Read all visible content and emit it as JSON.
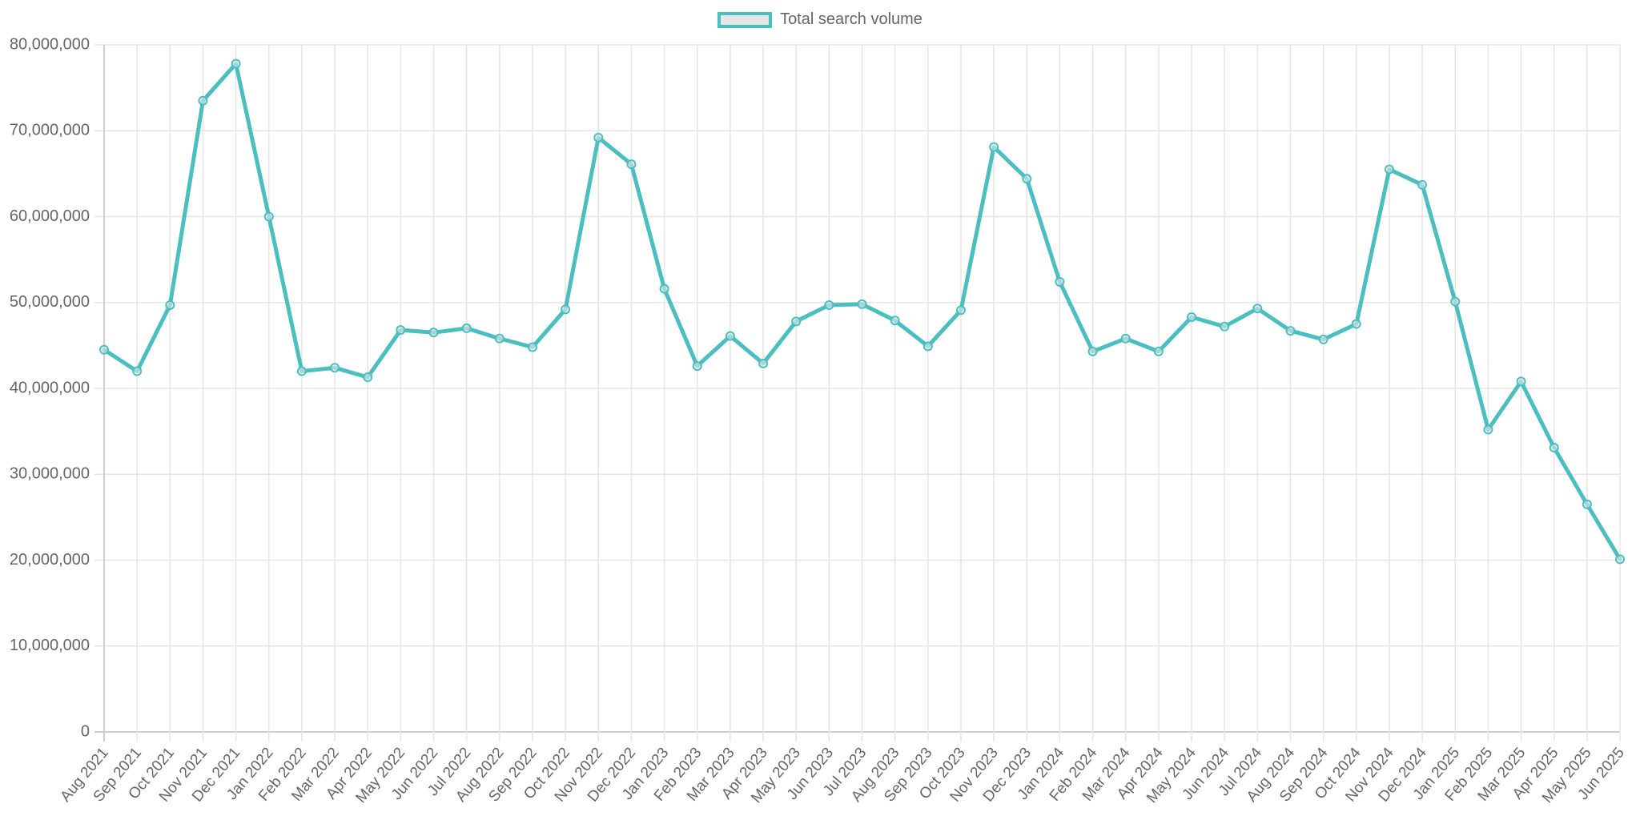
{
  "legend": {
    "label": "Total search volume",
    "border_color": "#4bbfbf",
    "fill_color": "#e6e6e6"
  },
  "chart_data": {
    "type": "line",
    "title": "",
    "xlabel": "",
    "ylabel": "",
    "ylim": [
      0,
      80000000
    ],
    "yticks": [
      0,
      10000000,
      20000000,
      30000000,
      40000000,
      50000000,
      60000000,
      70000000,
      80000000
    ],
    "ytick_labels": [
      "0",
      "10,000,000",
      "20,000,000",
      "30,000,000",
      "40,000,000",
      "50,000,000",
      "60,000,000",
      "70,000,000",
      "80,000,000"
    ],
    "grid": true,
    "legend_position": "top",
    "categories": [
      "Aug 2021",
      "Sep 2021",
      "Oct 2021",
      "Nov 2021",
      "Dec 2021",
      "Jan 2022",
      "Feb 2022",
      "Mar 2022",
      "Apr 2022",
      "May 2022",
      "Jun 2022",
      "Jul 2022",
      "Aug 2022",
      "Sep 2022",
      "Oct 2022",
      "Nov 2022",
      "Dec 2022",
      "Jan 2023",
      "Feb 2023",
      "Mar 2023",
      "Apr 2023",
      "May 2023",
      "Jun 2023",
      "Jul 2023",
      "Aug 2023",
      "Sep 2023",
      "Oct 2023",
      "Nov 2023",
      "Dec 2023",
      "Jan 2024",
      "Feb 2024",
      "Mar 2024",
      "Apr 2024",
      "May 2024",
      "Jun 2024",
      "Jul 2024",
      "Aug 2024",
      "Sep 2024",
      "Oct 2024",
      "Nov 2024",
      "Dec 2024",
      "Jan 2025",
      "Feb 2025",
      "Mar 2025",
      "Apr 2025",
      "May 2025",
      "Jun 2025"
    ],
    "series": [
      {
        "name": "Total search volume",
        "color": "#4bbfbf",
        "values": [
          44500000,
          42000000,
          49700000,
          73500000,
          77800000,
          60000000,
          42000000,
          42400000,
          41300000,
          46800000,
          46500000,
          47000000,
          45800000,
          44800000,
          49200000,
          69200000,
          66100000,
          51600000,
          42600000,
          46100000,
          42900000,
          47800000,
          49700000,
          49800000,
          47900000,
          44900000,
          49100000,
          68100000,
          64400000,
          52400000,
          44300000,
          45800000,
          44300000,
          48300000,
          47200000,
          49300000,
          46700000,
          45700000,
          47500000,
          65500000,
          63700000,
          50100000,
          35200000,
          40800000,
          33100000,
          26500000,
          20100000
        ]
      }
    ]
  }
}
